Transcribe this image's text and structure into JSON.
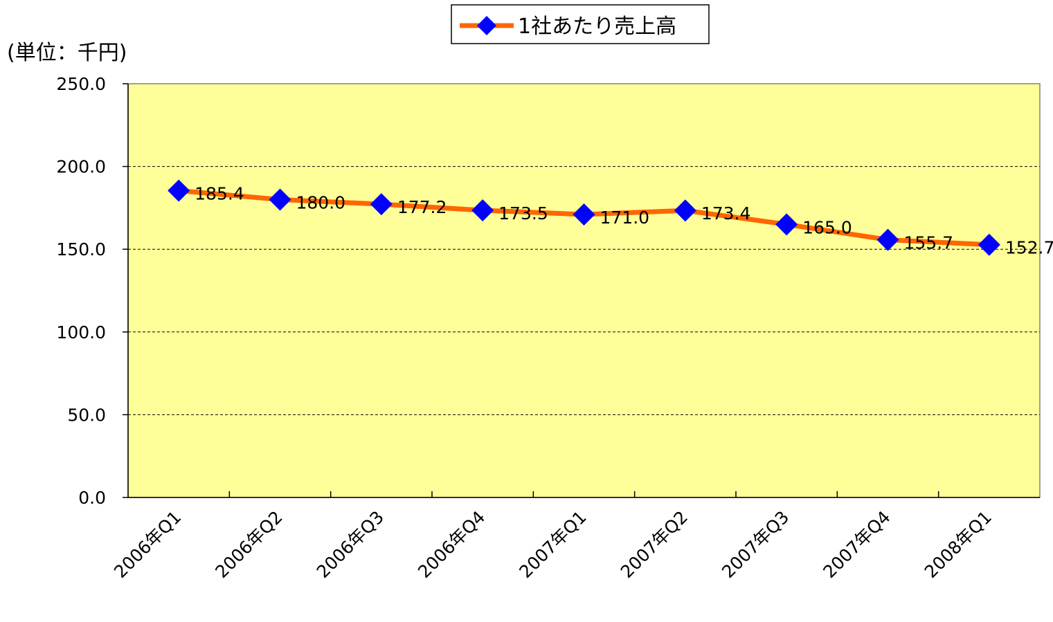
{
  "chart_data": {
    "type": "line",
    "y_axis_label": "(単位：千円)",
    "categories": [
      "2006年Q1",
      "2006年Q2",
      "2006年Q3",
      "2006年Q4",
      "2007年Q1",
      "2007年Q2",
      "2007年Q3",
      "2007年Q4",
      "2008年Q1"
    ],
    "series": [
      {
        "name": "1社あたり売上高",
        "color": "#ff6600",
        "marker_color": "#0000ff",
        "values": [
          185.4,
          180.0,
          177.2,
          173.5,
          171.0,
          173.4,
          165.0,
          155.7,
          152.7
        ],
        "value_labels": [
          "185.4",
          "180.0",
          "177.2",
          "173.5",
          "171.0",
          "173.4",
          "165.0",
          "155.7",
          "152.7"
        ]
      }
    ],
    "ylim": [
      0,
      250
    ],
    "yticks": [
      {
        "value": 0,
        "label": "0.0"
      },
      {
        "value": 50,
        "label": "50.0"
      },
      {
        "value": 100,
        "label": "100.0"
      },
      {
        "value": 150,
        "label": "150.0"
      },
      {
        "value": 200,
        "label": "200.0"
      },
      {
        "value": 250,
        "label": "250.0"
      }
    ],
    "grid": true,
    "legend": "top",
    "plot_background": "#ffff99"
  }
}
